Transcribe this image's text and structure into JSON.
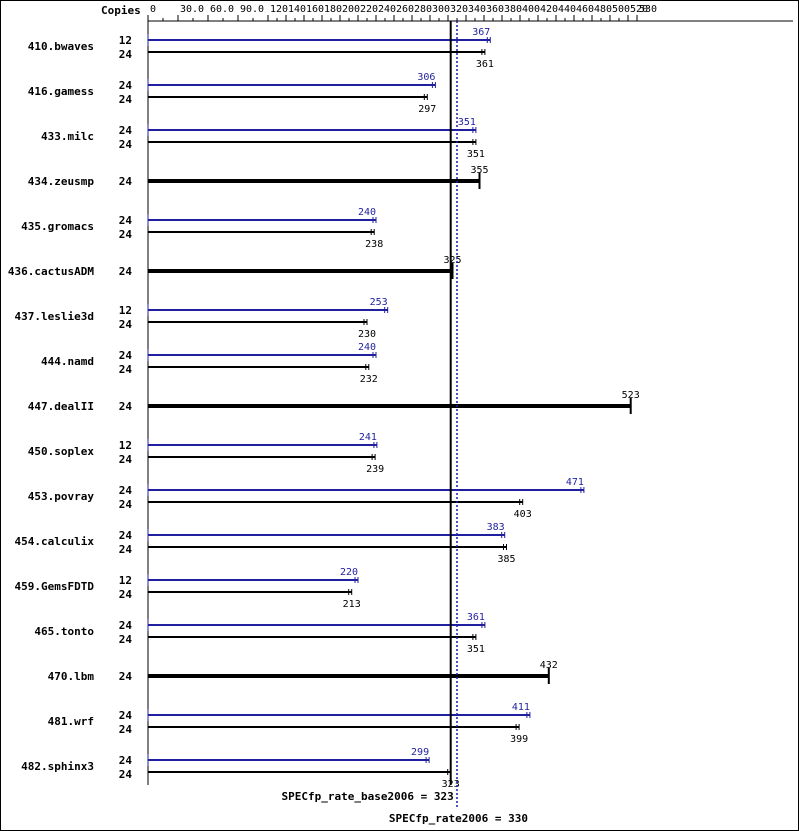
{
  "chart_data": {
    "type": "bar",
    "copies_header": "Copies",
    "x_ticks": [
      "0",
      "30.0",
      "60.0",
      "90.0",
      "120",
      "140",
      "160",
      "180",
      "200",
      "220",
      "240",
      "260",
      "280",
      "300",
      "320",
      "340",
      "360",
      "380",
      "400",
      "420",
      "440",
      "460",
      "480",
      "500",
      "520",
      "530"
    ],
    "colors": {
      "peak": "#1f1f9f",
      "base": "#000000"
    },
    "benchmarks": [
      {
        "name": "410.bwaves",
        "peak_copies": "12",
        "peak": 367,
        "base_copies": "24",
        "base": 361
      },
      {
        "name": "416.gamess",
        "peak_copies": "24",
        "peak": 306,
        "base_copies": "24",
        "base": 297
      },
      {
        "name": "433.milc",
        "peak_copies": "24",
        "peak": 351,
        "base_copies": "24",
        "base": 351
      },
      {
        "name": "434.zeusmp",
        "peak_copies": null,
        "peak": null,
        "base_copies": "24",
        "base": 355
      },
      {
        "name": "435.gromacs",
        "peak_copies": "24",
        "peak": 240,
        "base_copies": "24",
        "base": 238
      },
      {
        "name": "436.cactusADM",
        "peak_copies": null,
        "peak": null,
        "base_copies": "24",
        "base": 325
      },
      {
        "name": "437.leslie3d",
        "peak_copies": "12",
        "peak": 253,
        "base_copies": "24",
        "base": 230
      },
      {
        "name": "444.namd",
        "peak_copies": "24",
        "peak": 240,
        "base_copies": "24",
        "base": 232
      },
      {
        "name": "447.dealII",
        "peak_copies": null,
        "peak": null,
        "base_copies": "24",
        "base": 523
      },
      {
        "name": "450.soplex",
        "peak_copies": "12",
        "peak": 241,
        "base_copies": "24",
        "base": 239
      },
      {
        "name": "453.povray",
        "peak_copies": "24",
        "peak": 471,
        "base_copies": "24",
        "base": 403
      },
      {
        "name": "454.calculix",
        "peak_copies": "24",
        "peak": 383,
        "base_copies": "24",
        "base": 385
      },
      {
        "name": "459.GemsFDTD",
        "peak_copies": "12",
        "peak": 220,
        "base_copies": "24",
        "base": 213
      },
      {
        "name": "465.tonto",
        "peak_copies": "24",
        "peak": 361,
        "base_copies": "24",
        "base": 351
      },
      {
        "name": "470.lbm",
        "peak_copies": null,
        "peak": null,
        "base_copies": "24",
        "base": 432
      },
      {
        "name": "481.wrf",
        "peak_copies": "24",
        "peak": 411,
        "base_copies": "24",
        "base": 399
      },
      {
        "name": "482.sphinx3",
        "peak_copies": "24",
        "peak": 299,
        "base_copies": "24",
        "base": 323
      }
    ],
    "base_metric": {
      "label": "SPECfp_rate_base2006 = 323",
      "value": 323
    },
    "peak_metric": {
      "label": "SPECfp_rate2006 = 330",
      "value": 330
    }
  }
}
